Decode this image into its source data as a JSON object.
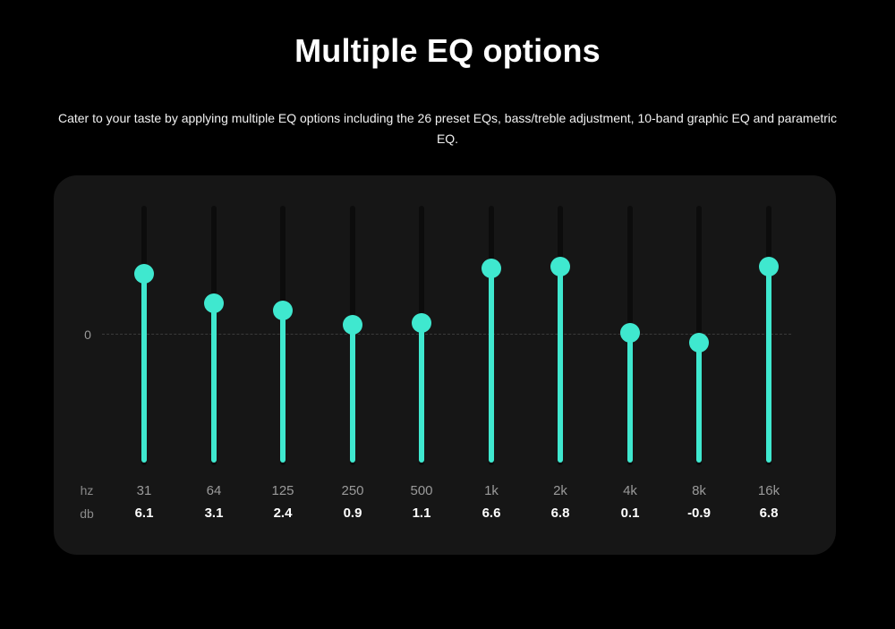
{
  "header": {
    "title": "Multiple EQ options",
    "description": "Cater to your taste by applying multiple EQ options including the 26 preset EQs, bass/treble adjustment, 10-band graphic EQ and parametric EQ."
  },
  "equalizer": {
    "zero_label": "0",
    "hz_label": "hz",
    "db_label": "db",
    "accent_color": "#3fe8cf",
    "bands": [
      {
        "hz": "31",
        "db": "6.1",
        "value": 6.1
      },
      {
        "hz": "64",
        "db": "3.1",
        "value": 3.1
      },
      {
        "hz": "125",
        "db": "2.4",
        "value": 2.4
      },
      {
        "hz": "250",
        "db": "0.9",
        "value": 0.9
      },
      {
        "hz": "500",
        "db": "1.1",
        "value": 1.1
      },
      {
        "hz": "1k",
        "db": "6.6",
        "value": 6.6
      },
      {
        "hz": "2k",
        "db": "6.8",
        "value": 6.8
      },
      {
        "hz": "4k",
        "db": "0.1",
        "value": 0.1
      },
      {
        "hz": "8k",
        "db": "-0.9",
        "value": -0.9
      },
      {
        "hz": "16k",
        "db": "6.8",
        "value": 6.8
      }
    ]
  }
}
